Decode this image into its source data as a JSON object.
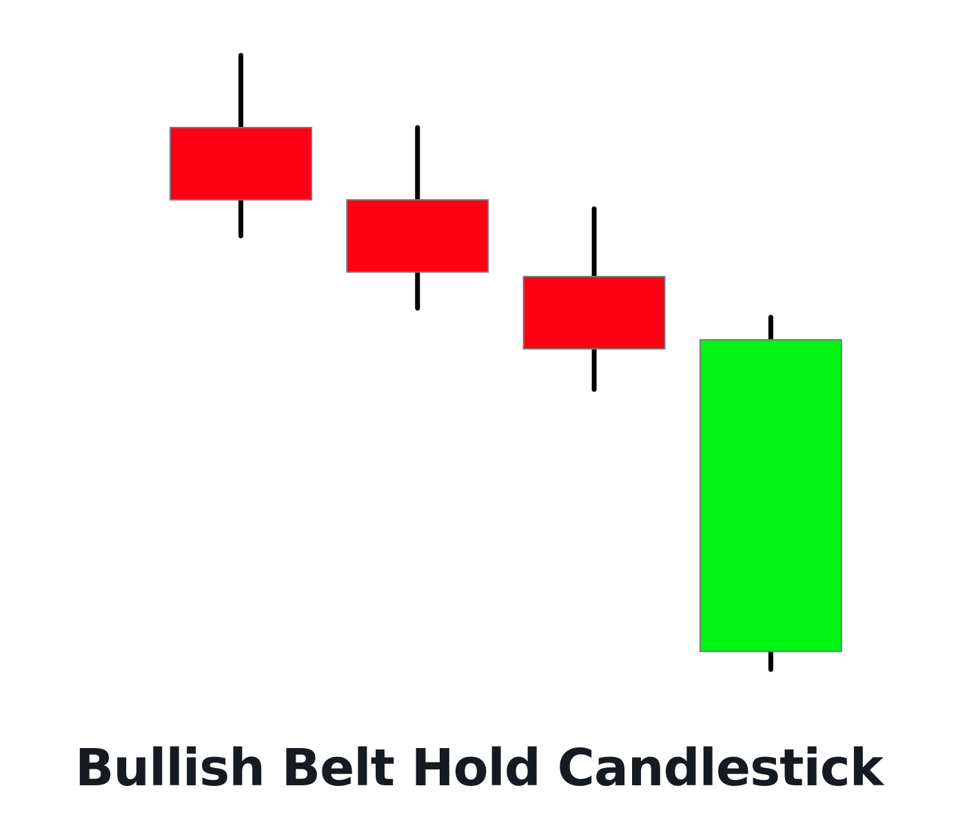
{
  "caption": "Bullish Belt Hold Candlestick",
  "colors": {
    "bearish": "#ff0015",
    "bullish": "#00f513",
    "wick": "#000000",
    "body_border": "#7a7a7a",
    "caption": "#161b22"
  },
  "chart_data": {
    "type": "candlestick",
    "candles": [
      {
        "name": "candle-1",
        "direction": "bearish",
        "open": 100,
        "close": 92,
        "high": 108,
        "low": 88
      },
      {
        "name": "candle-2",
        "direction": "bearish",
        "open": 92,
        "close": 84,
        "high": 100,
        "low": 80
      },
      {
        "name": "candle-3",
        "direction": "bearish",
        "open": 83.5,
        "close": 75.5,
        "high": 91,
        "low": 71
      },
      {
        "name": "candle-4",
        "direction": "bullish",
        "open": 42,
        "close": 76.5,
        "high": 79,
        "low": 40
      }
    ]
  }
}
